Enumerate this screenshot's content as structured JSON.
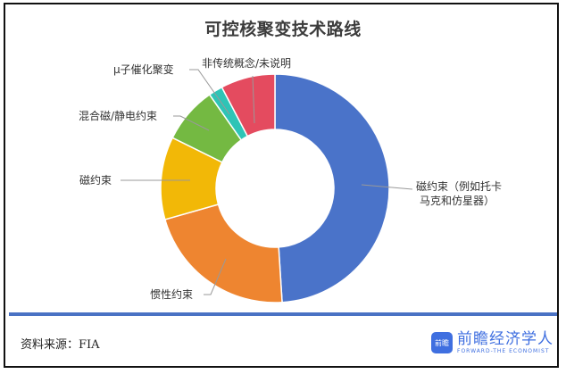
{
  "title": "可控核聚变技术路线",
  "source": "资料来源：FIA",
  "brand": {
    "icon_text": "前瞻",
    "name": "前瞻经济学人",
    "subtitle": "FORWARD-THE ECONOMIST",
    "color": "#3f6fe0"
  },
  "chart_data": {
    "type": "pie",
    "variant": "donut",
    "title": "可控核聚变技术路线",
    "categories": [
      "磁约束（例如托卡马克和仿星器）",
      "惯性约束",
      "磁约束",
      "混合磁/静电约束",
      "μ子催化聚变",
      "非传统概念/未说明"
    ],
    "values": [
      49,
      21.6,
      11.7,
      8,
      2,
      7.7
    ],
    "unit": "% (estimated from slice angles, not labeled)",
    "colors": [
      "#4a73c9",
      "#ee8530",
      "#f2b807",
      "#74b942",
      "#2ec4b6",
      "#e44b5f"
    ],
    "legend": "none (leader-line labels)",
    "start_angle": "12 o'clock, clockwise"
  },
  "labels": {
    "l0a": "磁约束（例如托卡",
    "l0b": "马克和仿星器）",
    "l1": "惯性约束",
    "l2": "磁约束",
    "l3": "混合磁/静电约束",
    "l4": "μ子催化聚变",
    "l5": "非传统概念/未说明"
  }
}
